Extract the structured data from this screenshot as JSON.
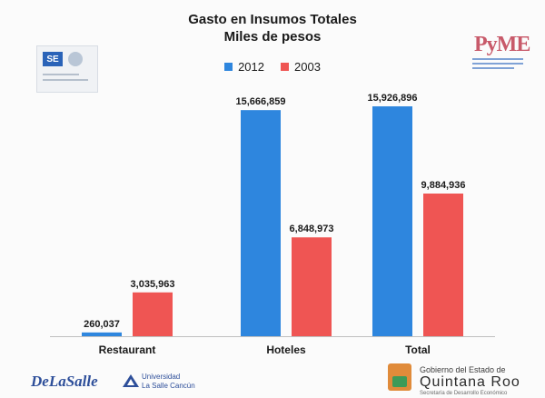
{
  "chart_data": {
    "type": "bar",
    "title": "Gasto en Insumos Totales",
    "subtitle": "Miles de pesos",
    "categories": [
      "Restaurant",
      "Hoteles",
      "Total"
    ],
    "series": [
      {
        "name": "2012",
        "color": "#2e86de",
        "values": [
          260037,
          15666859,
          15926896
        ],
        "labels": [
          "260,037",
          "15,666,859",
          "15,926,896"
        ]
      },
      {
        "name": "2003",
        "color": "#ef5553",
        "values": [
          3035963,
          6848973,
          9884936
        ],
        "labels": [
          "3,035,963",
          "6,848,973",
          "9,884,936"
        ]
      }
    ],
    "ylim": [
      0,
      17000000
    ],
    "grid": false,
    "legend_position": "top-center"
  },
  "logos": {
    "top_left": {
      "text": "SE",
      "icon": "se-logo-icon"
    },
    "top_right": {
      "text": "PyME",
      "icon": "pyme-logo-icon"
    },
    "bottom_left": {
      "brand": "DeLaSalle",
      "university_line1": "Universidad",
      "university_line2": "La Salle Cancún",
      "icon": "universidad-la-salle-icon"
    },
    "bottom_right": {
      "line1": "Gobierno del Estado de",
      "line2": "Quintana Roo",
      "line3": "Secretaría de Desarrollo Económico",
      "icon": "quintana-roo-emblem-icon"
    }
  }
}
